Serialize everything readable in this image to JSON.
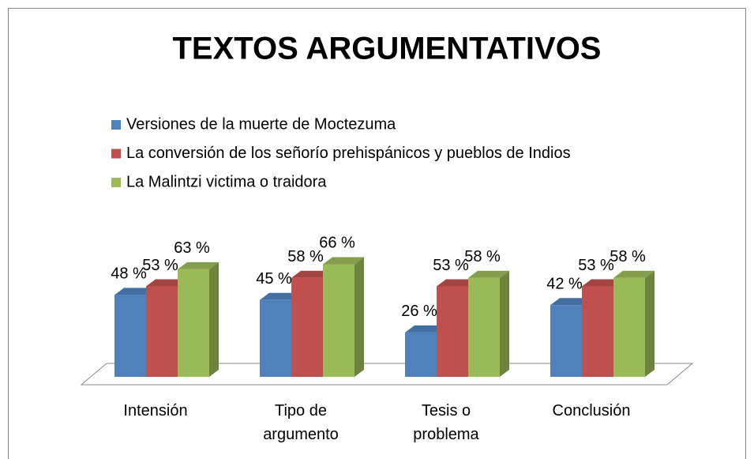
{
  "chart_data": {
    "type": "bar3d",
    "title": "TEXTOS ARGUMENTATIVOS",
    "categories": [
      "Intensión",
      "Tipo de argumento",
      "Tesis o problema",
      "Conclusión"
    ],
    "series": [
      {
        "name": "Versiones de la muerte de Moctezuma",
        "color": "#4f81bd",
        "values": [
          48,
          45,
          26,
          42
        ],
        "value_labels": [
          "48 %",
          "45 %",
          "26 %",
          "42 %"
        ]
      },
      {
        "name": "La conversión de los señorío prehispánicos y pueblos de Indios",
        "color": "#c0504d",
        "values": [
          53,
          58,
          53,
          53
        ],
        "value_labels": [
          "53 %",
          "58 %",
          "53 %",
          "53 %"
        ]
      },
      {
        "name": "La Malintzi victima o traidora",
        "color": "#9bbb59",
        "values": [
          63,
          66,
          58,
          58
        ],
        "value_labels": [
          "63 %",
          "66 %",
          "58 %",
          "58 %"
        ]
      }
    ]
  }
}
